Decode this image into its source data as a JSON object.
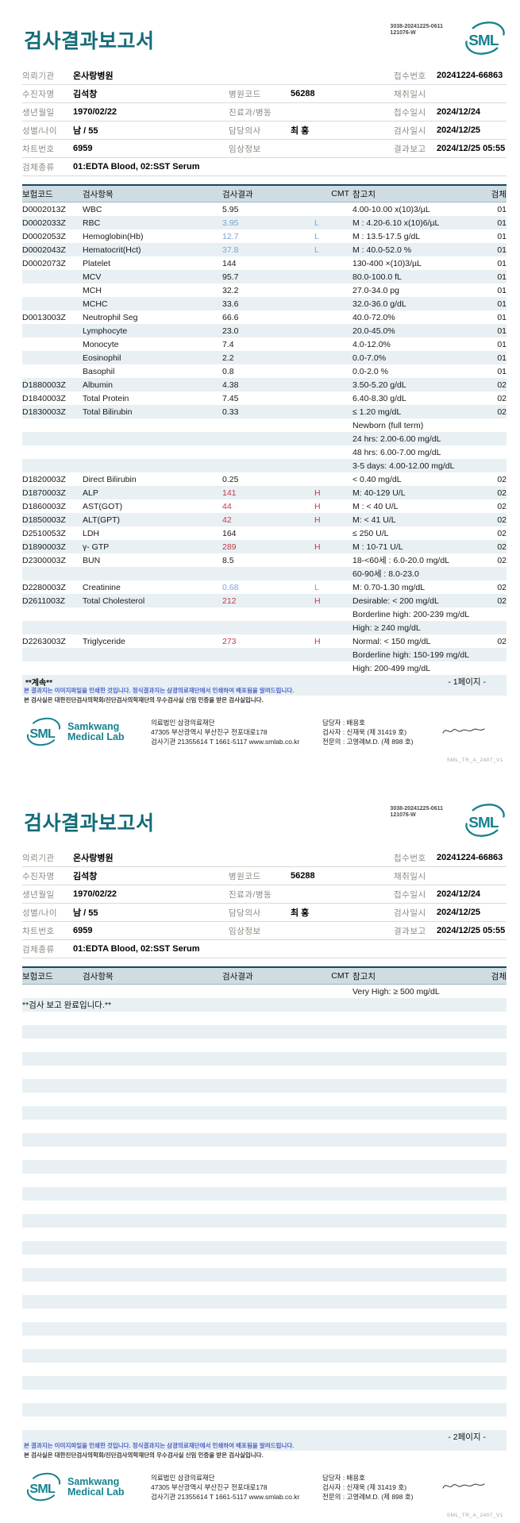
{
  "header": {
    "title": "검사결과보고서",
    "doc_code_line1": "3038-20241225-0611",
    "doc_code_line2": "121076-W",
    "logo_text": "SML"
  },
  "patient": {
    "rows": [
      {
        "cells": [
          [
            "의뢰기관",
            "온사랑병원"
          ],
          [
            "",
            ""
          ],
          [
            "접수번호",
            "20241224-66863"
          ]
        ]
      },
      {
        "cells": [
          [
            "수진자명",
            "김석창"
          ],
          [
            "병원코드",
            "56288"
          ],
          [
            "채취일시",
            ""
          ]
        ]
      },
      {
        "cells": [
          [
            "생년월일",
            "1970/02/22"
          ],
          [
            "진료과/병동",
            ""
          ],
          [
            "접수일시",
            "2024/12/24"
          ]
        ]
      },
      {
        "cells": [
          [
            "성별/나이",
            "남 / 55"
          ],
          [
            "담당의사",
            "최 홍"
          ],
          [
            "검사일시",
            "2024/12/25"
          ]
        ]
      },
      {
        "cells": [
          [
            "차트번호",
            "6959"
          ],
          [
            "임상정보",
            ""
          ],
          [
            "결과보고",
            "2024/12/25 05:55"
          ]
        ]
      },
      {
        "cells": [
          [
            "검체종류",
            "01:EDTA Blood, 02:SST Serum"
          ]
        ]
      }
    ]
  },
  "table": {
    "headers": [
      "보험코드",
      "검사항목",
      "검사결과",
      "CMT",
      "참고치",
      "검체"
    ],
    "page1_rows": [
      {
        "code": "D0002013Z",
        "name": "WBC",
        "result": "5.95",
        "flag": "",
        "ref": "4.00-10.00 x(10)3/µL",
        "spec": "01",
        "status": ""
      },
      {
        "code": "D0002033Z",
        "name": "RBC",
        "result": "3.95",
        "flag": "L",
        "ref": "M : 4.20-6.10 x(10)6/µL",
        "spec": "01",
        "status": "low"
      },
      {
        "code": "D0002053Z",
        "name": "Hemoglobin(Hb)",
        "result": "12.7",
        "flag": "L",
        "ref": "M : 13.5-17.5 g/dL",
        "spec": "01",
        "status": "low"
      },
      {
        "code": "D0002043Z",
        "name": "Hematocrit(Hct)",
        "result": "37.8",
        "flag": "L",
        "ref": "M : 40.0-52.0 %",
        "spec": "01",
        "status": "low"
      },
      {
        "code": "D0002073Z",
        "name": "Platelet",
        "result": "144",
        "flag": "",
        "ref": "130-400 ×(10)3/µL",
        "spec": "01",
        "status": ""
      },
      {
        "code": "",
        "name": "MCV",
        "result": "95.7",
        "flag": "",
        "ref": "80.0-100.0 fL",
        "spec": "01",
        "status": ""
      },
      {
        "code": "",
        "name": "MCH",
        "result": "32.2",
        "flag": "",
        "ref": "27.0-34.0 pg",
        "spec": "01",
        "status": ""
      },
      {
        "code": "",
        "name": "MCHC",
        "result": "33.6",
        "flag": "",
        "ref": "32.0-36.0 g/dL",
        "spec": "01",
        "status": ""
      },
      {
        "code": "D0013003Z",
        "name": "Neutrophil Seg",
        "result": "66.6",
        "flag": "",
        "ref": "40.0-72.0%",
        "spec": "01",
        "status": ""
      },
      {
        "code": "",
        "name": "Lymphocyte",
        "result": "23.0",
        "flag": "",
        "ref": "20.0-45.0%",
        "spec": "01",
        "status": ""
      },
      {
        "code": "",
        "name": "Monocyte",
        "result": "7.4",
        "flag": "",
        "ref": "4.0-12.0%",
        "spec": "01",
        "status": ""
      },
      {
        "code": "",
        "name": "Eosinophil",
        "result": "2.2",
        "flag": "",
        "ref": "0.0-7.0%",
        "spec": "01",
        "status": ""
      },
      {
        "code": "",
        "name": "Basophil",
        "result": "0.8",
        "flag": "",
        "ref": "0.0-2.0 %",
        "spec": "01",
        "status": ""
      },
      {
        "code": "D1880003Z",
        "name": "Albumin",
        "result": "4.38",
        "flag": "",
        "ref": "3.50-5.20 g/dL",
        "spec": "02",
        "status": ""
      },
      {
        "code": "D1840003Z",
        "name": "Total Protein",
        "result": "7.45",
        "flag": "",
        "ref": "6.40-8.30 g/dL",
        "spec": "02",
        "status": ""
      },
      {
        "code": "D1830003Z",
        "name": "Total Bilirubin",
        "result": "0.33",
        "flag": "",
        "ref": "≤ 1.20 mg/dL",
        "spec": "02",
        "status": ""
      },
      {
        "code": "",
        "name": "",
        "result": "",
        "flag": "",
        "ref": "Newborn (full term)",
        "spec": "",
        "status": ""
      },
      {
        "code": "",
        "name": "",
        "result": "",
        "flag": "",
        "ref": "24 hrs: 2.00-6.00 mg/dL",
        "spec": "",
        "status": ""
      },
      {
        "code": "",
        "name": "",
        "result": "",
        "flag": "",
        "ref": "48 hrs: 6.00-7.00 mg/dL",
        "spec": "",
        "status": ""
      },
      {
        "code": "",
        "name": "",
        "result": "",
        "flag": "",
        "ref": "3-5 days: 4.00-12.00 mg/dL",
        "spec": "",
        "status": ""
      },
      {
        "code": "D1820003Z",
        "name": "Direct Bilirubin",
        "result": "0.25",
        "flag": "",
        "ref": "< 0.40 mg/dL",
        "spec": "02",
        "status": ""
      },
      {
        "code": "D1870003Z",
        "name": "ALP",
        "result": "141",
        "flag": "H",
        "ref": "M: 40-129 U/L",
        "spec": "02",
        "status": "high"
      },
      {
        "code": "D1860003Z",
        "name": "AST(GOT)",
        "result": "44",
        "flag": "H",
        "ref": "M : < 40 U/L",
        "spec": "02",
        "status": "high"
      },
      {
        "code": "D1850003Z",
        "name": "ALT(GPT)",
        "result": "42",
        "flag": "H",
        "ref": "M: < 41 U/L",
        "spec": "02",
        "status": "high"
      },
      {
        "code": "D2510053Z",
        "name": "LDH",
        "result": "164",
        "flag": "",
        "ref": "≤ 250 U/L",
        "spec": "02",
        "status": ""
      },
      {
        "code": "D1890003Z",
        "name": "γ- GTP",
        "result": "289",
        "flag": "H",
        "ref": "M : 10-71 U/L",
        "spec": "02",
        "status": "high"
      },
      {
        "code": "D2300003Z",
        "name": "BUN",
        "result": "8.5",
        "flag": "",
        "ref": "18-<60세 : 6.0-20.0 mg/dL",
        "spec": "02",
        "status": ""
      },
      {
        "code": "",
        "name": "",
        "result": "",
        "flag": "",
        "ref": "60-90세 : 8.0-23.0",
        "spec": "",
        "status": ""
      },
      {
        "code": "D2280003Z",
        "name": "Creatinine",
        "result": "0.68",
        "flag": "L",
        "ref": "M: 0.70-1.30 mg/dL",
        "spec": "02",
        "status": "low"
      },
      {
        "code": "D2611003Z",
        "name": "Total Cholesterol",
        "result": "212",
        "flag": "H",
        "ref": "Desirable: < 200 mg/dL",
        "spec": "02",
        "status": "high"
      },
      {
        "code": "",
        "name": "",
        "result": "",
        "flag": "",
        "ref": "Borderline high: 200-239 mg/dL",
        "spec": "",
        "status": ""
      },
      {
        "code": "",
        "name": "",
        "result": "",
        "flag": "",
        "ref": "High: ≥ 240 mg/dL",
        "spec": "",
        "status": ""
      },
      {
        "code": "D2263003Z",
        "name": "Triglyceride",
        "result": "273",
        "flag": "H",
        "ref": "Normal: < 150 mg/dL",
        "spec": "02",
        "status": "high"
      },
      {
        "code": "",
        "name": "",
        "result": "",
        "flag": "",
        "ref": "Borderline high: 150-199 mg/dL",
        "spec": "",
        "status": ""
      },
      {
        "code": "",
        "name": "",
        "result": "",
        "flag": "",
        "ref": "High: 200-499 mg/dL",
        "spec": "",
        "status": ""
      }
    ],
    "page2_rows": [
      {
        "code": "",
        "name": "",
        "result": "",
        "flag": "",
        "ref": "Very High: ≥ 500 mg/dL",
        "spec": "",
        "status": ""
      },
      {
        "message": "**검사 보고 완료입니다.**"
      }
    ],
    "page2_empty_rows": 31
  },
  "notes": {
    "continued": "**계속**",
    "page1_note": "- 1페이지 -",
    "page2_note": "- 2페이지 -",
    "disclaimer1": "본 결과지는 이미지파일을 인쇄한 것입니다. 정식결과지는 삼광의료재단에서 인쇄하여 배포됨을 알려드립니다.",
    "disclaimer2": "본 검사실은 대한진단검사의학회/진단검사의학재단의 우수검사실 신임 인증을 받은 검사실입니다."
  },
  "footer": {
    "lab_name_line1": "Samkwang",
    "lab_name_line2": "Medical Lab",
    "org": "의료법인 삼광의료재단",
    "address": "47305 부산광역시 부산진구 전포대로178",
    "contact": "검사기관 21355614 T 1661-5117 www.smlab.co.kr",
    "staff1": "담당자 :  배용호",
    "staff2": "검사자 :  신재욱 (제 31419 호)",
    "staff3": "전문의 :  고영례M.D. (제 898 호)",
    "form_code": "SML_TR_A_2407_V1"
  },
  "colors": {
    "accent_teal": "#156b78",
    "logo_teal": "#17828e",
    "low_blue": "#7da4cf",
    "high_red": "#c23a4b",
    "stripe_bg": "#e8f0f4",
    "table_header_bg": "#cfdde3"
  }
}
